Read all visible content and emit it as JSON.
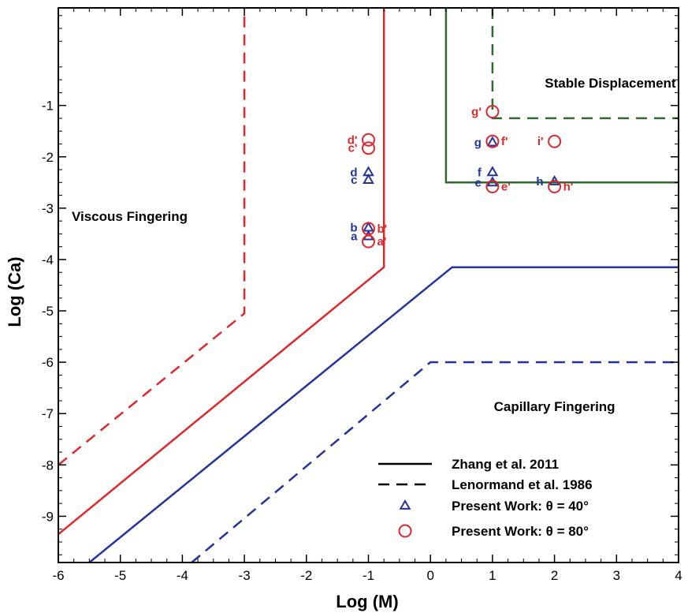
{
  "chart_data": {
    "type": "scatter",
    "xlabel": "Log (M)",
    "ylabel": "Log (Ca)",
    "xlim": [
      -6,
      4
    ],
    "ylim": [
      -9.9,
      0.9
    ],
    "x_ticks": [
      "-6",
      "-5",
      "-4",
      "-3",
      "-2",
      "-1",
      "0",
      "1",
      "2",
      "3",
      "4"
    ],
    "y_ticks": [
      "-1",
      "-2",
      "-3",
      "-4",
      "-5",
      "-6",
      "-7",
      "-8",
      "-9"
    ],
    "x_tick_values": [
      -6,
      -5,
      -4,
      -3,
      -2,
      -1,
      0,
      1,
      2,
      3,
      4
    ],
    "y_tick_values": [
      -1,
      -2,
      -3,
      -4,
      -5,
      -6,
      -7,
      -8,
      -9
    ],
    "grid": false,
    "legend_position": "bottom-right",
    "colors": {
      "red": "#e0282c",
      "blue": "#24339c",
      "green": "#2d6a2d"
    },
    "regions": [
      {
        "label": "Stable Displacement",
        "x": 2.9,
        "y": -0.65
      },
      {
        "label": "Viscous Fingering",
        "x": -4.85,
        "y": -3.25
      },
      {
        "label": "Capillary Fingering",
        "x": 2.0,
        "y": -6.95
      }
    ],
    "boundaries": [
      {
        "name": "zhang-viscous",
        "color": "#e0282c",
        "dash": false,
        "points": [
          [
            -6,
            -9.35
          ],
          [
            -0.75,
            -4.15
          ],
          [
            -0.75,
            0.9
          ]
        ]
      },
      {
        "name": "zhang-capillary",
        "color": "#24339c",
        "dash": false,
        "points": [
          [
            -5.5,
            -9.9
          ],
          [
            0.35,
            -4.15
          ],
          [
            4,
            -4.15
          ]
        ]
      },
      {
        "name": "zhang-stable",
        "color": "#2d6a2d",
        "dash": false,
        "points": [
          [
            0.25,
            0.9
          ],
          [
            0.25,
            -2.5
          ],
          [
            4,
            -2.5
          ]
        ]
      },
      {
        "name": "lenormand-viscous",
        "color": "#e0282c",
        "dash": true,
        "points": [
          [
            -6,
            -8.0
          ],
          [
            -3,
            -5.05
          ],
          [
            -3,
            0.9
          ]
        ]
      },
      {
        "name": "lenormand-capillary",
        "color": "#24339c",
        "dash": true,
        "points": [
          [
            -3.85,
            -9.9
          ],
          [
            0,
            -6.0
          ],
          [
            4,
            -6.0
          ]
        ]
      },
      {
        "name": "lenormand-stable",
        "color": "#2d6a2d",
        "dash": true,
        "points": [
          [
            1,
            0.9
          ],
          [
            1,
            -1.25
          ],
          [
            4,
            -1.25
          ]
        ]
      }
    ],
    "series": [
      {
        "name": "Present Work: θ = 40°",
        "marker": "triangle",
        "color": "#24339c",
        "points": [
          {
            "label": "a",
            "x": -1,
            "y": -3.55
          },
          {
            "label": "b",
            "x": -1,
            "y": -3.38
          },
          {
            "label": "c",
            "x": -1,
            "y": -2.45
          },
          {
            "label": "d",
            "x": -1,
            "y": -2.3
          },
          {
            "label": "e",
            "x": 1,
            "y": -2.5
          },
          {
            "label": "f",
            "x": 1,
            "y": -2.3
          },
          {
            "label": "g",
            "x": 1,
            "y": -1.72
          },
          {
            "label": "h",
            "x": 2,
            "y": -2.48
          }
        ]
      },
      {
        "name": "Present Work: θ = 80°",
        "marker": "circle",
        "color": "#e0282c",
        "points": [
          {
            "label": "a'",
            "x": -1,
            "y": -3.65
          },
          {
            "label": "b'",
            "x": -1,
            "y": -3.4
          },
          {
            "label": "c'",
            "x": -1,
            "y": -1.83
          },
          {
            "label": "d'",
            "x": -1,
            "y": -1.67
          },
          {
            "label": "e'",
            "x": 1,
            "y": -2.58
          },
          {
            "label": "f'",
            "x": 1,
            "y": -1.7
          },
          {
            "label": "g'",
            "x": 1,
            "y": -1.12
          },
          {
            "label": "h'",
            "x": 2,
            "y": -2.58
          },
          {
            "label": "i'",
            "x": 2,
            "y": -1.7
          }
        ]
      }
    ],
    "point_label_placement": {
      "a": "left",
      "b": "left",
      "c": "left",
      "d": "left",
      "e": "left",
      "f": "left",
      "g": "left",
      "h": "left",
      "a'": "right",
      "b'": "right",
      "c'": "left",
      "d'": "left",
      "e'": "right",
      "f'": "right",
      "g'": "left",
      "h'": "right",
      "i'": "left"
    },
    "legend": [
      {
        "label": "Zhang et al. 2011",
        "style": "solid-line"
      },
      {
        "label": "Lenormand et al. 1986",
        "style": "dashed-line"
      },
      {
        "label": "Present Work: θ = 40°",
        "style": "triangle"
      },
      {
        "label": "Present Work: θ = 80°",
        "style": "circle"
      }
    ]
  }
}
